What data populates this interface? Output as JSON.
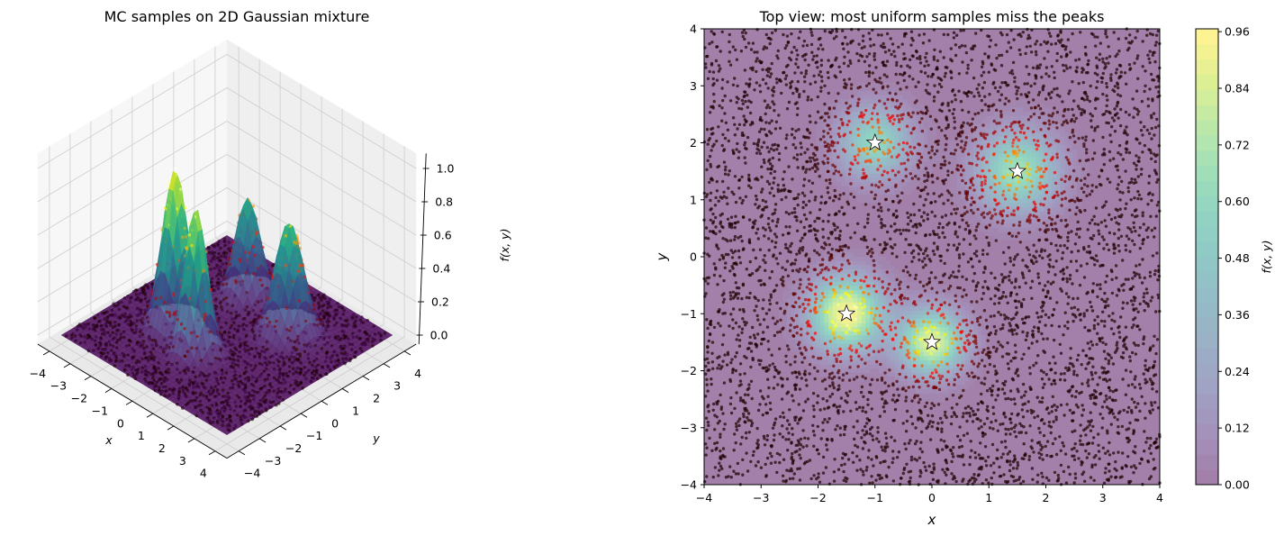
{
  "chart_data": [
    {
      "type": "surface3d",
      "title": "MC samples on 2D Gaussian mixture",
      "xlabel": "x",
      "ylabel": "y",
      "zlabel": "f(x, y)",
      "xlim": [
        -4,
        4
      ],
      "ylim": [
        -4,
        4
      ],
      "zlim": [
        0,
        1.0
      ],
      "xticks": [
        "−4",
        "−3",
        "−2",
        "−1",
        "0",
        "1",
        "2",
        "3",
        "4"
      ],
      "yticks": [
        "−4",
        "−3",
        "−2",
        "−1",
        "0",
        "1",
        "2",
        "3",
        "4"
      ],
      "zticks": [
        "0.0",
        "0.2",
        "0.4",
        "0.6",
        "0.8",
        "1.0"
      ],
      "colormap": "viridis",
      "grid": true,
      "view": {
        "elev": 30,
        "azim": -45
      },
      "samples": {
        "n": 2000,
        "distribution": "uniform",
        "colormap": "hot"
      }
    },
    {
      "type": "heatmap",
      "title": "Top view: most uniform samples miss the peaks",
      "xlabel": "x",
      "ylabel": "y",
      "xlim": [
        -4,
        4
      ],
      "ylim": [
        -4,
        4
      ],
      "xticks": [
        "−4",
        "−3",
        "−2",
        "−1",
        "0",
        "1",
        "2",
        "3",
        "4"
      ],
      "yticks": [
        "−4",
        "−3",
        "−2",
        "−1",
        "0",
        "1",
        "2",
        "3",
        "4"
      ],
      "colormap": "viridis",
      "fill_alpha": 0.5,
      "levels": 30,
      "colorbar": {
        "label": "f(x, y)",
        "ticks": [
          "0.00",
          "0.12",
          "0.24",
          "0.36",
          "0.48",
          "0.60",
          "0.72",
          "0.84",
          "0.96"
        ],
        "range": [
          0,
          0.966
        ]
      },
      "peak_markers": [
        {
          "x": -1.5,
          "y": -1.0
        },
        {
          "x": 0.0,
          "y": -1.5
        },
        {
          "x": -1.0,
          "y": 2.0
        },
        {
          "x": 1.5,
          "y": 1.5
        }
      ],
      "samples": {
        "n": 5000,
        "distribution": "uniform",
        "colormap": "hot"
      }
    }
  ],
  "mixture": {
    "components": [
      {
        "cx": -1.5,
        "cy": -1.0,
        "amplitude": 0.96,
        "sigma": 0.45
      },
      {
        "cx": 0.0,
        "cy": -1.5,
        "amplitude": 0.88,
        "sigma": 0.4
      },
      {
        "cx": -1.0,
        "cy": 2.0,
        "amplitude": 0.6,
        "sigma": 0.44
      },
      {
        "cx": 1.5,
        "cy": 1.5,
        "amplitude": 0.68,
        "sigma": 0.5
      }
    ]
  },
  "colors": {
    "star_fill": "#ffffff",
    "star_edge": "#000000",
    "pane_left": "#f7f7f7",
    "pane_right": "#efefef",
    "pane_floor": "#e9e9e9"
  }
}
